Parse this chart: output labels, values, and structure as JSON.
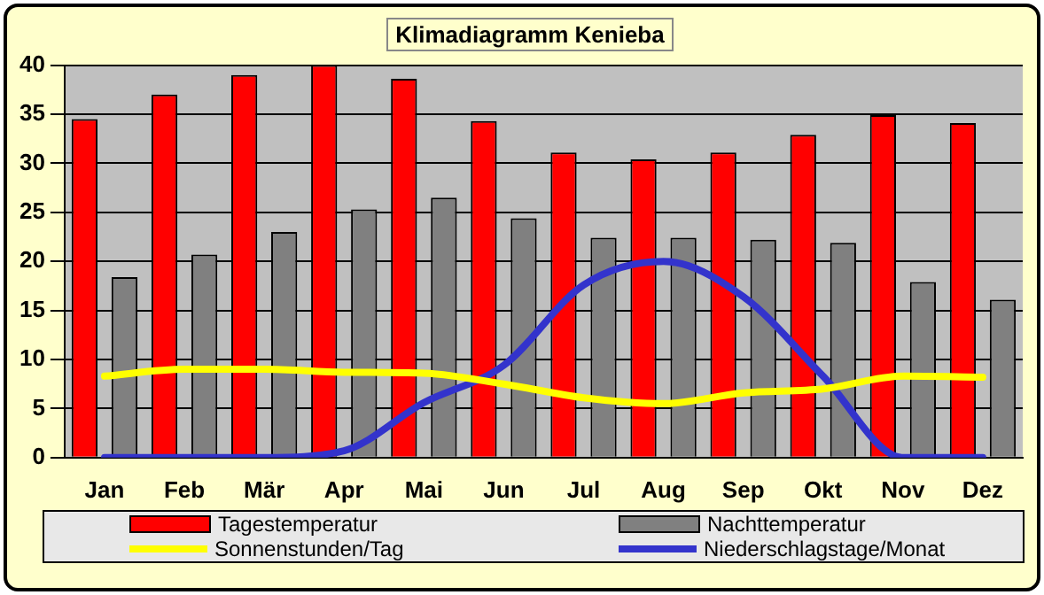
{
  "chart_data": {
    "type": "bar",
    "title": "Klimadiagramm Kenieba",
    "categories": [
      "Jan",
      "Feb",
      "Mär",
      "Apr",
      "Mai",
      "Jun",
      "Jul",
      "Aug",
      "Sep",
      "Okt",
      "Nov",
      "Dez"
    ],
    "series": [
      {
        "name": "Tagestemperatur",
        "color": "#ff0000",
        "values": [
          34.5,
          37,
          39,
          40,
          38.6,
          34.3,
          31.1,
          30.4,
          31.1,
          32.9,
          34.9,
          34.1
        ]
      },
      {
        "name": "Nachttemperatur",
        "color": "#808080",
        "values": [
          18.4,
          20.7,
          23,
          25.3,
          26.5,
          24.4,
          22.4,
          22.4,
          22.2,
          21.9,
          17.9,
          16.1
        ]
      },
      {
        "name": "Sonnenstunden/Tag",
        "type": "line",
        "color": "#ffff00",
        "values": [
          8.3,
          9,
          9,
          8.7,
          8.6,
          7.5,
          6.1,
          5.5,
          6.6,
          7,
          8.3,
          8.2
        ]
      },
      {
        "name": "Niederschlagstage/Monat",
        "type": "line",
        "color": "#3333cc",
        "values": [
          0,
          0,
          0,
          0.7,
          5.6,
          9.4,
          17.6,
          20,
          16.4,
          8.3,
          0,
          0
        ]
      }
    ],
    "ylim": [
      0,
      40
    ],
    "yticks": [
      0,
      5,
      10,
      15,
      20,
      25,
      30,
      35,
      40
    ],
    "grid": "y",
    "legend": "bottom",
    "marker": "none"
  }
}
